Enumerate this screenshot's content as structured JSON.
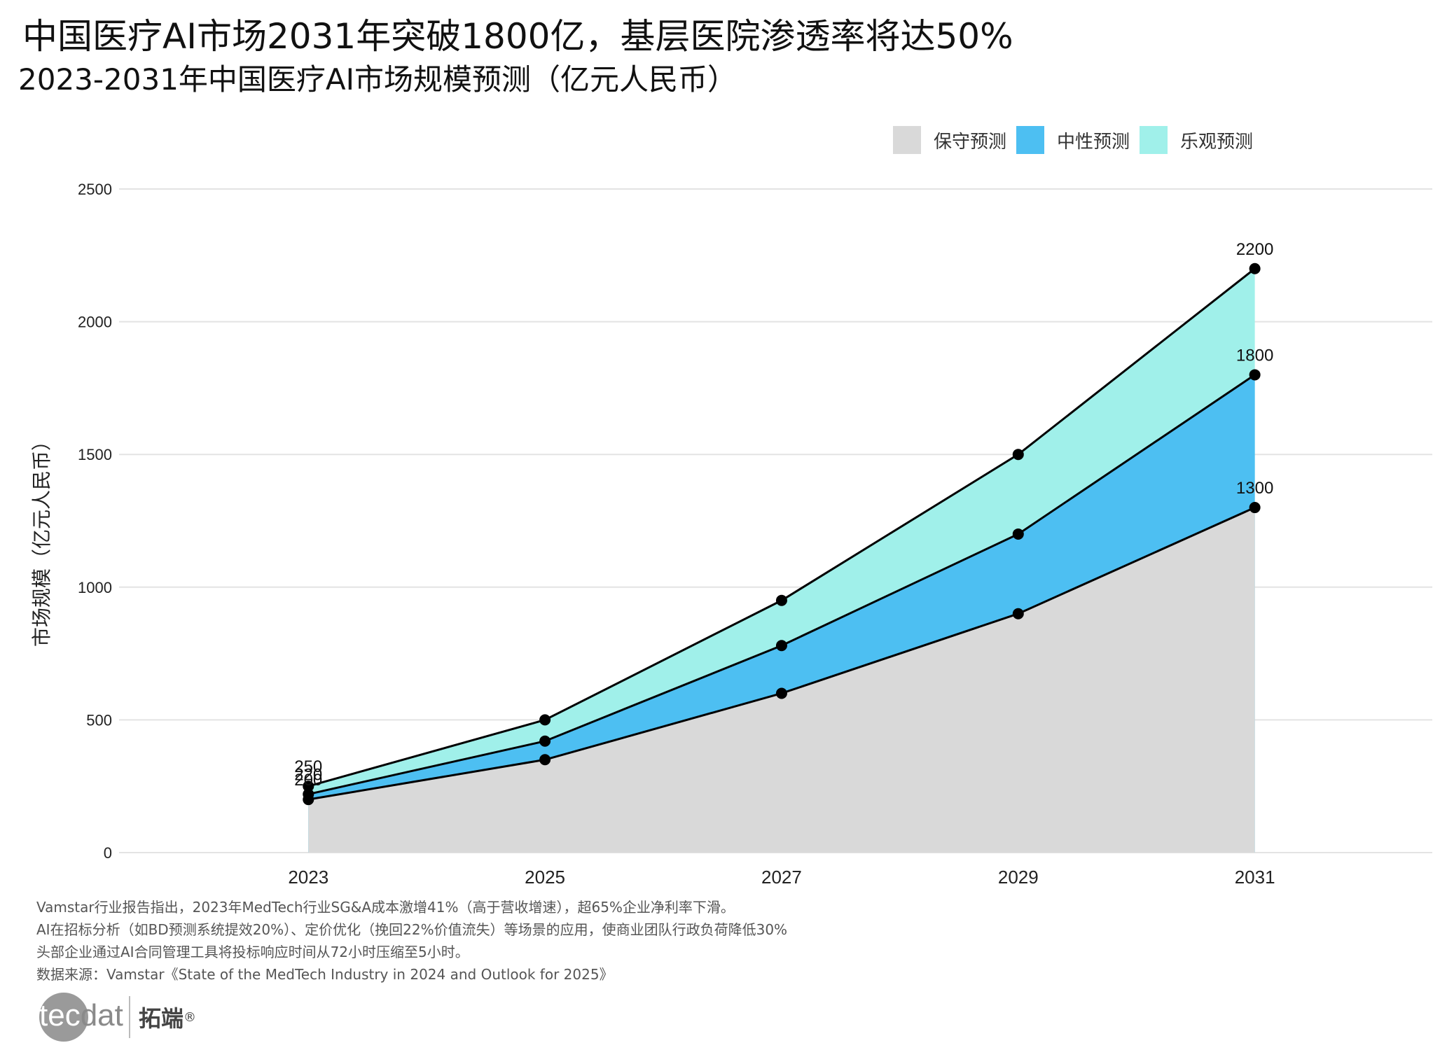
{
  "title": "中国医疗AI市场2031年突破1800亿，基层医院渗透率将达50%",
  "subtitle": "2023-2031年中国医疗AI市场规模预测（亿元人民币）",
  "legend": [
    {
      "label": "保守预测",
      "color": "#d9d9d9"
    },
    {
      "label": "中性预测",
      "color": "#4dbff2"
    },
    {
      "label": "乐观预测",
      "color": "#a0f0ea"
    }
  ],
  "chart_data": {
    "type": "area",
    "x": [
      2023,
      2025,
      2027,
      2029,
      2031
    ],
    "series": [
      {
        "name": "保守预测",
        "values": [
          200,
          350,
          600,
          900,
          1300
        ],
        "color": "#d9d9d9"
      },
      {
        "name": "中性预测",
        "values": [
          220,
          420,
          780,
          1200,
          1800
        ],
        "color": "#4dbff2"
      },
      {
        "name": "乐观预测",
        "values": [
          250,
          500,
          950,
          1500,
          2200
        ],
        "color": "#a0f0ea"
      }
    ],
    "data_labels": [
      {
        "x": 2023,
        "labels": [
          "200",
          "220",
          "250"
        ]
      },
      {
        "x": 2031,
        "labels": [
          "1300",
          "1800",
          "2200"
        ]
      }
    ],
    "xticks": [
      "2023",
      "2025",
      "2027",
      "2029",
      "2031"
    ],
    "yticks": [
      "0",
      "500",
      "1000",
      "1500",
      "2000",
      "2500"
    ],
    "ylabel": "市场规模（亿元人民币）",
    "xlabel": "",
    "ylim": [
      0,
      2500
    ],
    "xlim": [
      2021.4,
      2032.5
    ],
    "grid": "horizontal",
    "legend_position": "top-right"
  },
  "footnotes": [
    "Vamstar行业报告指出，2023年MedTech行业SG&A成本激增41%（高于营收增速），超65%企业净利率下滑。",
    "AI在招标分析（如BD预测系统提效20%）、定价优化（挽回22%价值流失）等场景的应用，使商业团队行政负荷降低30%",
    "头部企业通过AI合同管理工具将投标响应时间从72小时压缩至5小时。",
    "数据来源：Vamstar《State of the MedTech Industry in 2024 and Outlook for 2025》"
  ],
  "logo": {
    "text_a": "tec",
    "text_b": "dat",
    "cn": "拓端",
    "reg": "®"
  }
}
